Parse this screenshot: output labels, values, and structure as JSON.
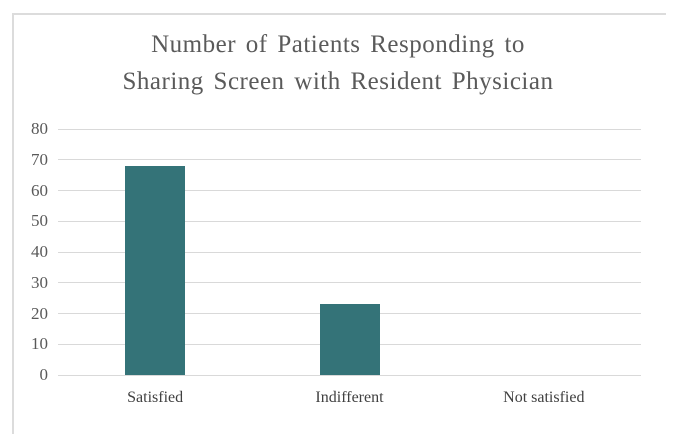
{
  "chart_data": {
    "type": "bar",
    "title": "Number of Patients Responding to Sharing Screen with Resident Physician",
    "title_lines": [
      "Number of Patients Responding to",
      "Sharing Screen with Resident Physician"
    ],
    "categories": [
      "Satisfied",
      "Indifferent",
      "Not satisfied"
    ],
    "values": [
      68,
      23,
      0
    ],
    "xlabel": "",
    "ylabel": "",
    "ylim": [
      0,
      80
    ],
    "yticks": [
      0,
      10,
      20,
      30,
      40,
      50,
      60,
      70,
      80
    ],
    "grid": "horizontal",
    "legend": "none",
    "colors": {
      "bar": "#347378",
      "gridline": "#d9d9d9",
      "title_text": "#5a5a5a",
      "y_tick_text": "#595959",
      "category_text": "#404040",
      "frame_border": "#dcdcdc",
      "background": "#ffffff"
    }
  }
}
